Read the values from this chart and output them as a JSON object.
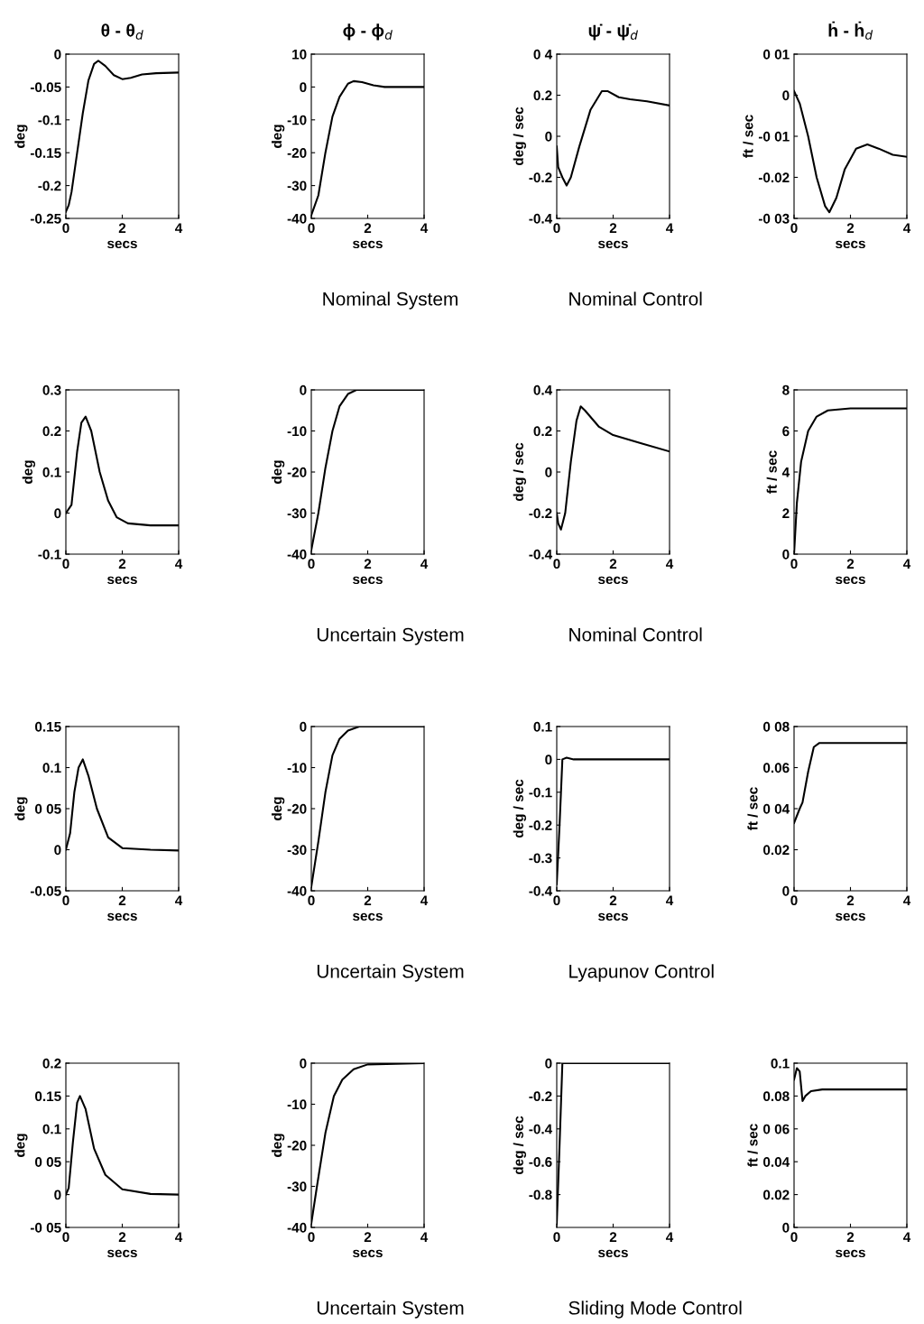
{
  "chart_data": [
    {
      "type": "line",
      "title": "θ - θ$_{d}$",
      "xlabel": "secs",
      "ylabel": "deg",
      "color": "#000000",
      "xlim": [
        0,
        4
      ],
      "xticks": [
        0,
        2,
        4
      ],
      "ylim": [
        -0.25,
        0
      ],
      "yticks": [
        0,
        -0.05,
        -0.1,
        -0.15,
        -0.2,
        -0.25
      ],
      "x": [
        0,
        0.1,
        0.2,
        0.4,
        0.6,
        0.8,
        1.0,
        1.15,
        1.4,
        1.7,
        2.0,
        2.3,
        2.7,
        3.2,
        4
      ],
      "values": [
        -0.24,
        -0.23,
        -0.21,
        -0.15,
        -0.09,
        -0.04,
        -0.015,
        -0.01,
        -0.018,
        -0.032,
        -0.038,
        -0.036,
        -0.031,
        -0.029,
        -0.028
      ]
    },
    {
      "type": "line",
      "title": "ϕ - ϕ$_{d}$",
      "xlabel": "secs",
      "ylabel": "deg",
      "color": "#000000",
      "xlim": [
        0,
        4
      ],
      "xticks": [
        0,
        2,
        4
      ],
      "ylim": [
        -40,
        10
      ],
      "yticks": [
        10,
        0,
        -10,
        -20,
        -30,
        -40
      ],
      "x": [
        0,
        0.25,
        0.5,
        0.75,
        1.0,
        1.3,
        1.5,
        1.8,
        2.2,
        2.6,
        4
      ],
      "values": [
        -39,
        -33,
        -20,
        -9,
        -3,
        1,
        1.8,
        1.5,
        0.5,
        0,
        0
      ],
      "annotations": [
        "Nominal System"
      ]
    },
    {
      "type": "line",
      "title": "ψ̇ - ψ̇$_{d}$",
      "xlabel": "secs",
      "ylabel": "deg / sec",
      "color": "#000000",
      "xlim": [
        0,
        4
      ],
      "xticks": [
        0,
        2,
        4
      ],
      "ylim": [
        -0.4,
        0.4
      ],
      "yticks": [
        {
          "value": 0.4,
          "label": "0 4"
        },
        0.2,
        0,
        -0.2,
        -0.4
      ],
      "x": [
        0,
        0.05,
        0.2,
        0.35,
        0.5,
        0.8,
        1.2,
        1.6,
        1.8,
        2.2,
        2.6,
        3.2,
        4
      ],
      "values": [
        -0.05,
        -0.15,
        -0.2,
        -0.24,
        -0.2,
        -0.05,
        0.13,
        0.22,
        0.22,
        0.19,
        0.18,
        0.17,
        0.15
      ],
      "annotations": [
        "Nominal Control"
      ]
    },
    {
      "type": "line",
      "title": "ḣ - ḣ$_{d}$",
      "xlabel": "secs",
      "ylabel": "ft / sec",
      "color": "#000000",
      "xlim": [
        0,
        4
      ],
      "xticks": [
        0,
        2,
        4
      ],
      "ylim": [
        -0.03,
        0.01
      ],
      "yticks": [
        {
          "value": 0.01,
          "label": "0 01"
        },
        0,
        {
          "value": -0.01,
          "label": "-0 01"
        },
        -0.02,
        {
          "value": -0.03,
          "label": "-0 03"
        }
      ],
      "x": [
        0,
        0.2,
        0.5,
        0.8,
        1.1,
        1.25,
        1.5,
        1.8,
        2.2,
        2.6,
        3.0,
        3.5,
        4
      ],
      "values": [
        0.001,
        -0.002,
        -0.01,
        -0.02,
        -0.027,
        -0.0285,
        -0.025,
        -0.018,
        -0.013,
        -0.012,
        -0.013,
        -0.0145,
        -0.015
      ]
    },
    {
      "type": "line",
      "xlabel": "secs",
      "ylabel": "deg",
      "color": "#000000",
      "xlim": [
        0,
        4
      ],
      "xticks": [
        0,
        2,
        4
      ],
      "ylim": [
        -0.1,
        0.3
      ],
      "yticks": [
        0.3,
        0.2,
        0.1,
        0,
        -0.1
      ],
      "x": [
        0,
        0.2,
        0.4,
        0.55,
        0.7,
        0.9,
        1.2,
        1.5,
        1.8,
        2.2,
        3,
        4
      ],
      "values": [
        0,
        0.02,
        0.15,
        0.22,
        0.235,
        0.2,
        0.1,
        0.03,
        -0.01,
        -0.025,
        -0.03,
        -0.03
      ]
    },
    {
      "type": "line",
      "xlabel": "secs",
      "ylabel": "deg",
      "color": "#000000",
      "xlim": [
        0,
        4
      ],
      "xticks": [
        0,
        2,
        4
      ],
      "ylim": [
        -40,
        0
      ],
      "yticks": [
        0,
        -10,
        -20,
        -30,
        -40
      ],
      "x": [
        0,
        0.25,
        0.5,
        0.75,
        1.0,
        1.3,
        1.6,
        4
      ],
      "values": [
        -39,
        -30,
        -19,
        -10,
        -4,
        -1,
        0,
        0
      ],
      "annotations": [
        "Uncertain System"
      ]
    },
    {
      "type": "line",
      "xlabel": "secs",
      "ylabel": "deg / sec",
      "color": "#000000",
      "xlim": [
        0,
        4
      ],
      "xticks": [
        0,
        2,
        4
      ],
      "ylim": [
        -0.4,
        0.4
      ],
      "yticks": [
        0.4,
        0.2,
        0,
        -0.2,
        -0.4
      ],
      "x": [
        0,
        0.05,
        0.15,
        0.3,
        0.5,
        0.7,
        0.85,
        1.0,
        1.5,
        2,
        3,
        4
      ],
      "values": [
        -0.2,
        -0.25,
        -0.28,
        -0.2,
        0.05,
        0.25,
        0.32,
        0.3,
        0.22,
        0.18,
        0.14,
        0.1
      ],
      "annotations": [
        "Nominal Control"
      ]
    },
    {
      "type": "line",
      "xlabel": "secs",
      "ylabel": "ft / sec",
      "color": "#000000",
      "xlim": [
        0,
        4
      ],
      "xticks": [
        0,
        2,
        4
      ],
      "ylim": [
        0,
        8
      ],
      "yticks": [
        0,
        2,
        4,
        6,
        8
      ],
      "x": [
        0,
        0.1,
        0.25,
        0.5,
        0.8,
        1.2,
        2,
        4
      ],
      "values": [
        0,
        2.5,
        4.5,
        6,
        6.7,
        7.0,
        7.1,
        7.1
      ]
    },
    {
      "type": "line",
      "xlabel": "secs",
      "ylabel": "deg",
      "color": "#000000",
      "xlim": [
        0,
        4
      ],
      "xticks": [
        0,
        2,
        4
      ],
      "ylim": [
        -0.05,
        0.15
      ],
      "yticks": [
        0.15,
        0.1,
        {
          "value": 0.05,
          "label": "0 05"
        },
        0,
        -0.05
      ],
      "x": [
        0,
        0.15,
        0.3,
        0.45,
        0.6,
        0.8,
        1.1,
        1.5,
        2,
        3,
        4
      ],
      "values": [
        0,
        0.02,
        0.07,
        0.1,
        0.11,
        0.09,
        0.05,
        0.015,
        0.002,
        0,
        -0.001
      ]
    },
    {
      "type": "line",
      "xlabel": "secs",
      "ylabel": "deg",
      "color": "#000000",
      "xlim": [
        0,
        4
      ],
      "xticks": [
        0,
        2,
        4
      ],
      "ylim": [
        -40,
        0
      ],
      "yticks": [
        0,
        -10,
        -20,
        -30,
        -40
      ],
      "x": [
        0,
        0.25,
        0.5,
        0.75,
        1.0,
        1.3,
        1.7,
        4
      ],
      "values": [
        -39,
        -28,
        -16,
        -7,
        -3,
        -1,
        0,
        0
      ],
      "annotations": [
        "Uncertain System"
      ]
    },
    {
      "type": "line",
      "xlabel": "secs",
      "ylabel": "deg / sec",
      "color": "#000000",
      "xlim": [
        0,
        4
      ],
      "xticks": [
        0,
        2,
        4
      ],
      "ylim": [
        -0.4,
        0.1
      ],
      "yticks": [
        0.1,
        0,
        -0.1,
        -0.2,
        -0.3,
        -0.4
      ],
      "x": [
        0,
        0.1,
        0.2,
        0.35,
        0.6,
        4
      ],
      "values": [
        -0.38,
        -0.2,
        0,
        0.005,
        0,
        0
      ],
      "annotations": [
        "Lyapunov Control"
      ]
    },
    {
      "type": "line",
      "xlabel": "secs",
      "ylabel": "ft / sec",
      "color": "#000000",
      "xlim": [
        0,
        4
      ],
      "xticks": [
        0,
        2,
        4
      ],
      "ylim": [
        0,
        0.08
      ],
      "yticks": [
        {
          "value": 0.08,
          "label": "0 08"
        },
        0.06,
        {
          "value": 0.04,
          "label": "0 04"
        },
        0.02,
        0
      ],
      "x": [
        0,
        0.2,
        0.3,
        0.5,
        0.7,
        0.9,
        1.2,
        4
      ],
      "values": [
        0.033,
        0.04,
        0.043,
        0.058,
        0.07,
        0.072,
        0.072,
        0.072
      ]
    },
    {
      "type": "line",
      "xlabel": "secs",
      "ylabel": "deg",
      "color": "#000000",
      "xlim": [
        0,
        4
      ],
      "xticks": [
        0,
        2,
        4
      ],
      "ylim": [
        -0.05,
        0.2
      ],
      "yticks": [
        0.2,
        0.15,
        0.1,
        {
          "value": 0.05,
          "label": "0 05"
        },
        0,
        {
          "value": -0.05,
          "label": "-0 05"
        }
      ],
      "x": [
        0,
        0.1,
        0.25,
        0.4,
        0.5,
        0.7,
        1.0,
        1.4,
        2,
        3,
        4
      ],
      "values": [
        0,
        0.01,
        0.08,
        0.14,
        0.15,
        0.13,
        0.07,
        0.03,
        0.008,
        0.001,
        0
      ]
    },
    {
      "type": "line",
      "xlabel": "secs",
      "ylabel": "deg",
      "color": "#000000",
      "xlim": [
        0,
        4
      ],
      "xticks": [
        0,
        2,
        4
      ],
      "ylim": [
        -40,
        0
      ],
      "yticks": [
        0,
        -10,
        -20,
        -30,
        -40
      ],
      "x": [
        0,
        0.2,
        0.5,
        0.8,
        1.1,
        1.5,
        2,
        4
      ],
      "values": [
        -39,
        -30,
        -17,
        -8,
        -4,
        -1.5,
        -0.3,
        0
      ],
      "annotations": [
        "Uncertain System"
      ]
    },
    {
      "type": "line",
      "xlabel": "secs",
      "ylabel": "deg / sec",
      "color": "#000000",
      "xlim": [
        0,
        4
      ],
      "xticks": [
        0,
        2,
        4
      ],
      "ylim": [
        -1,
        0
      ],
      "yticks": [
        0,
        -0.2,
        -0.4,
        -0.6,
        -0.8
      ],
      "x": [
        0,
        0.1,
        0.2,
        4
      ],
      "values": [
        -0.98,
        -0.5,
        0,
        0
      ],
      "annotations": [
        "Sliding Mode Control"
      ]
    },
    {
      "type": "line",
      "xlabel": "secs",
      "ylabel": "ft / sec",
      "color": "#000000",
      "xlim": [
        0,
        4
      ],
      "xticks": [
        0,
        2,
        4
      ],
      "ylim": [
        0,
        0.1
      ],
      "yticks": [
        0.1,
        0.08,
        {
          "value": 0.06,
          "label": "0 06"
        },
        0.04,
        0.02,
        0
      ],
      "x": [
        0,
        0.1,
        0.2,
        0.3,
        0.4,
        0.6,
        1,
        4
      ],
      "values": [
        0.09,
        0.097,
        0.095,
        0.077,
        0.08,
        0.083,
        0.084,
        0.084
      ]
    }
  ]
}
